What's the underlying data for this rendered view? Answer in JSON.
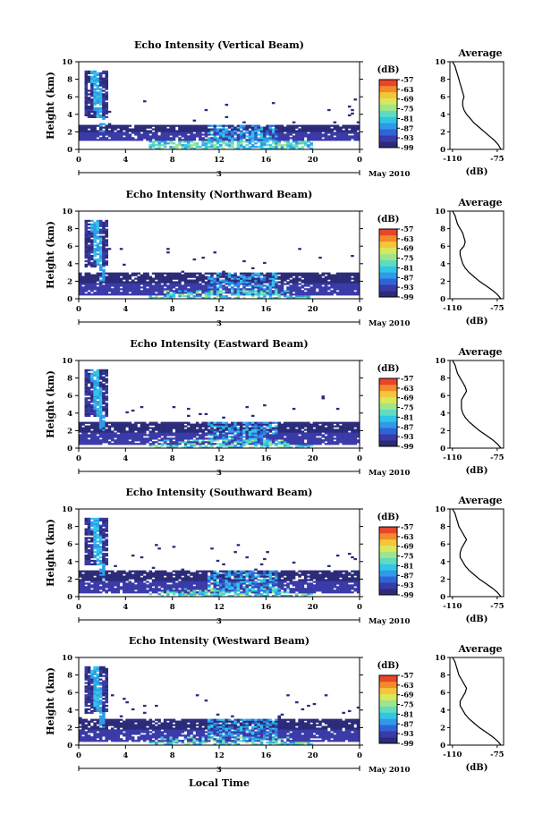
{
  "figure": {
    "xlabel": "Local Time",
    "date_label": "May 2010",
    "day_label": "3",
    "avg_title": "Average",
    "unit_label": "(dB)"
  },
  "chart_data": [
    {
      "type": "heatmap",
      "title": "Echo Intensity (Vertical Beam)",
      "ylabel": "Height (km)",
      "xlabel": "Local Time",
      "x_ticks": [
        "0",
        "4",
        "8",
        "12",
        "16",
        "20",
        "0"
      ],
      "xlim": [
        0,
        24
      ],
      "ylim": [
        0,
        10
      ],
      "y_ticks": [
        0,
        2,
        4,
        6,
        8,
        10
      ],
      "colorbar": {
        "label": "(dB)",
        "ticks": [
          -57,
          -63,
          -69,
          -75,
          -81,
          -87,
          -93,
          -99
        ],
        "range": [
          -99,
          -57
        ]
      },
      "features": {
        "plume_hours": [
          0.5,
          2.5
        ],
        "plume_top_km": 9,
        "layer_km": [
          1,
          2.8
        ]
      }
    },
    {
      "type": "heatmap",
      "title": "Echo Intensity (Northward Beam)",
      "ylabel": "Height (km)",
      "xlabel": "Local Time",
      "x_ticks": [
        "0",
        "4",
        "8",
        "12",
        "16",
        "20",
        "0"
      ],
      "xlim": [
        0,
        24
      ],
      "ylim": [
        0,
        10
      ],
      "y_ticks": [
        0,
        2,
        4,
        6,
        8,
        10
      ],
      "colorbar": {
        "label": "(dB)",
        "ticks": [
          -57,
          -63,
          -69,
          -75,
          -81,
          -87,
          -93,
          -99
        ],
        "range": [
          -99,
          -57
        ]
      },
      "features": {
        "plume_hours": [
          0.5,
          2.5
        ],
        "plume_top_km": 9,
        "layer_km": [
          0.5,
          3
        ]
      }
    },
    {
      "type": "heatmap",
      "title": "Echo Intensity (Eastward Beam)",
      "ylabel": "Height (km)",
      "xlabel": "Local Time",
      "x_ticks": [
        "0",
        "4",
        "8",
        "12",
        "16",
        "20",
        "0"
      ],
      "xlim": [
        0,
        24
      ],
      "ylim": [
        0,
        10
      ],
      "y_ticks": [
        0,
        2,
        4,
        6,
        8,
        10
      ],
      "colorbar": {
        "label": "(dB)",
        "ticks": [
          -57,
          -63,
          -69,
          -75,
          -81,
          -87,
          -93,
          -99
        ],
        "range": [
          -99,
          -57
        ]
      },
      "features": {
        "plume_hours": [
          0.5,
          2.5
        ],
        "plume_top_km": 9,
        "layer_km": [
          0.5,
          3
        ]
      }
    },
    {
      "type": "heatmap",
      "title": "Echo Intensity (Southward Beam)",
      "ylabel": "Height (km)",
      "xlabel": "Local Time",
      "x_ticks": [
        "0",
        "4",
        "8",
        "12",
        "16",
        "20",
        "0"
      ],
      "xlim": [
        0,
        24
      ],
      "ylim": [
        0,
        10
      ],
      "y_ticks": [
        0,
        2,
        4,
        6,
        8,
        10
      ],
      "colorbar": {
        "label": "(dB)",
        "ticks": [
          -57,
          -63,
          -69,
          -75,
          -81,
          -87,
          -93,
          -99
        ],
        "range": [
          -99,
          -57
        ]
      },
      "features": {
        "plume_hours": [
          0.5,
          2.5
        ],
        "plume_top_km": 9,
        "layer_km": [
          0.5,
          3
        ]
      }
    },
    {
      "type": "heatmap",
      "title": "Echo Intensity (Westward Beam)",
      "ylabel": "Height (km)",
      "xlabel": "Local Time",
      "x_ticks": [
        "0",
        "4",
        "8",
        "12",
        "16",
        "20",
        "0"
      ],
      "xlim": [
        0,
        24
      ],
      "ylim": [
        0,
        10
      ],
      "y_ticks": [
        0,
        2,
        4,
        6,
        8,
        10
      ],
      "colorbar": {
        "label": "(dB)",
        "ticks": [
          -57,
          -63,
          -69,
          -75,
          -81,
          -87,
          -93,
          -99
        ],
        "range": [
          -99,
          -57
        ]
      },
      "features": {
        "plume_hours": [
          0.5,
          2.5
        ],
        "plume_top_km": 9,
        "layer_km": [
          0.5,
          3
        ]
      }
    },
    {
      "type": "line",
      "title": "Average",
      "xlabel": "(dB)",
      "x_ticks": [
        -110,
        -75
      ],
      "xlim": [
        -112,
        -70
      ],
      "ylim": [
        0,
        10
      ],
      "y_ticks": [
        0,
        2,
        4,
        6,
        8,
        10
      ],
      "series": [
        {
          "name": "Vertical",
          "x": [
            -72,
            -74,
            -77,
            -81,
            -85,
            -89,
            -93,
            -96,
            -99,
            -101,
            -102,
            -102,
            -101,
            -102,
            -103,
            -104,
            -105,
            -106,
            -107,
            -108,
            -110
          ],
          "y": [
            0,
            0.5,
            1,
            1.5,
            2,
            2.5,
            3,
            3.5,
            4,
            4.5,
            5,
            5.5,
            6,
            6.5,
            7,
            7.5,
            8,
            8.5,
            9,
            9.5,
            10
          ]
        },
        {
          "name": "Northward",
          "x": [
            -72,
            -75,
            -79,
            -84,
            -89,
            -93,
            -97,
            -100,
            -102,
            -103,
            -104,
            -104,
            -101,
            -100,
            -101,
            -102,
            -104,
            -106,
            -107,
            -108,
            -110
          ],
          "y": [
            0,
            0.5,
            1,
            1.5,
            2,
            2.5,
            3,
            3.5,
            4,
            4.5,
            5,
            5.5,
            6,
            6.5,
            7,
            7.5,
            8,
            8.5,
            9,
            9.5,
            10
          ]
        },
        {
          "name": "Eastward",
          "x": [
            -72,
            -75,
            -79,
            -84,
            -89,
            -93,
            -97,
            -100,
            -102,
            -103,
            -103,
            -103,
            -101,
            -99,
            -100,
            -102,
            -104,
            -106,
            -107,
            -108,
            -110
          ],
          "y": [
            0,
            0.5,
            1,
            1.5,
            2,
            2.5,
            3,
            3.5,
            4,
            4.5,
            5,
            5.5,
            6,
            6.5,
            7,
            7.5,
            8,
            8.5,
            9,
            9.5,
            10
          ]
        },
        {
          "name": "Southward",
          "x": [
            -72,
            -75,
            -79,
            -84,
            -89,
            -93,
            -97,
            -100,
            -102,
            -104,
            -104,
            -103,
            -101,
            -99,
            -101,
            -103,
            -105,
            -106,
            -107,
            -108,
            -110
          ],
          "y": [
            0,
            0.5,
            1,
            1.5,
            2,
            2.5,
            3,
            3.5,
            4,
            4.5,
            5,
            5.5,
            6,
            6.5,
            7,
            7.5,
            8,
            8.5,
            9,
            9.5,
            10
          ]
        },
        {
          "name": "Westward",
          "x": [
            -72,
            -75,
            -79,
            -84,
            -89,
            -93,
            -97,
            -100,
            -102,
            -104,
            -104,
            -102,
            -100,
            -99,
            -101,
            -103,
            -105,
            -106,
            -107,
            -108,
            -110
          ],
          "y": [
            0,
            0.5,
            1,
            1.5,
            2,
            2.5,
            3,
            3.5,
            4,
            4.5,
            5,
            5.5,
            6,
            6.5,
            7,
            7.5,
            8,
            8.5,
            9,
            9.5,
            10
          ]
        }
      ]
    }
  ],
  "colormap": [
    "#2b2b7a",
    "#3a3aa8",
    "#2f64d8",
    "#2f9ae8",
    "#31c5e8",
    "#5fdcc0",
    "#9ee58c",
    "#d8e85a",
    "#f6c53a",
    "#f48a2a",
    "#e8452a"
  ]
}
